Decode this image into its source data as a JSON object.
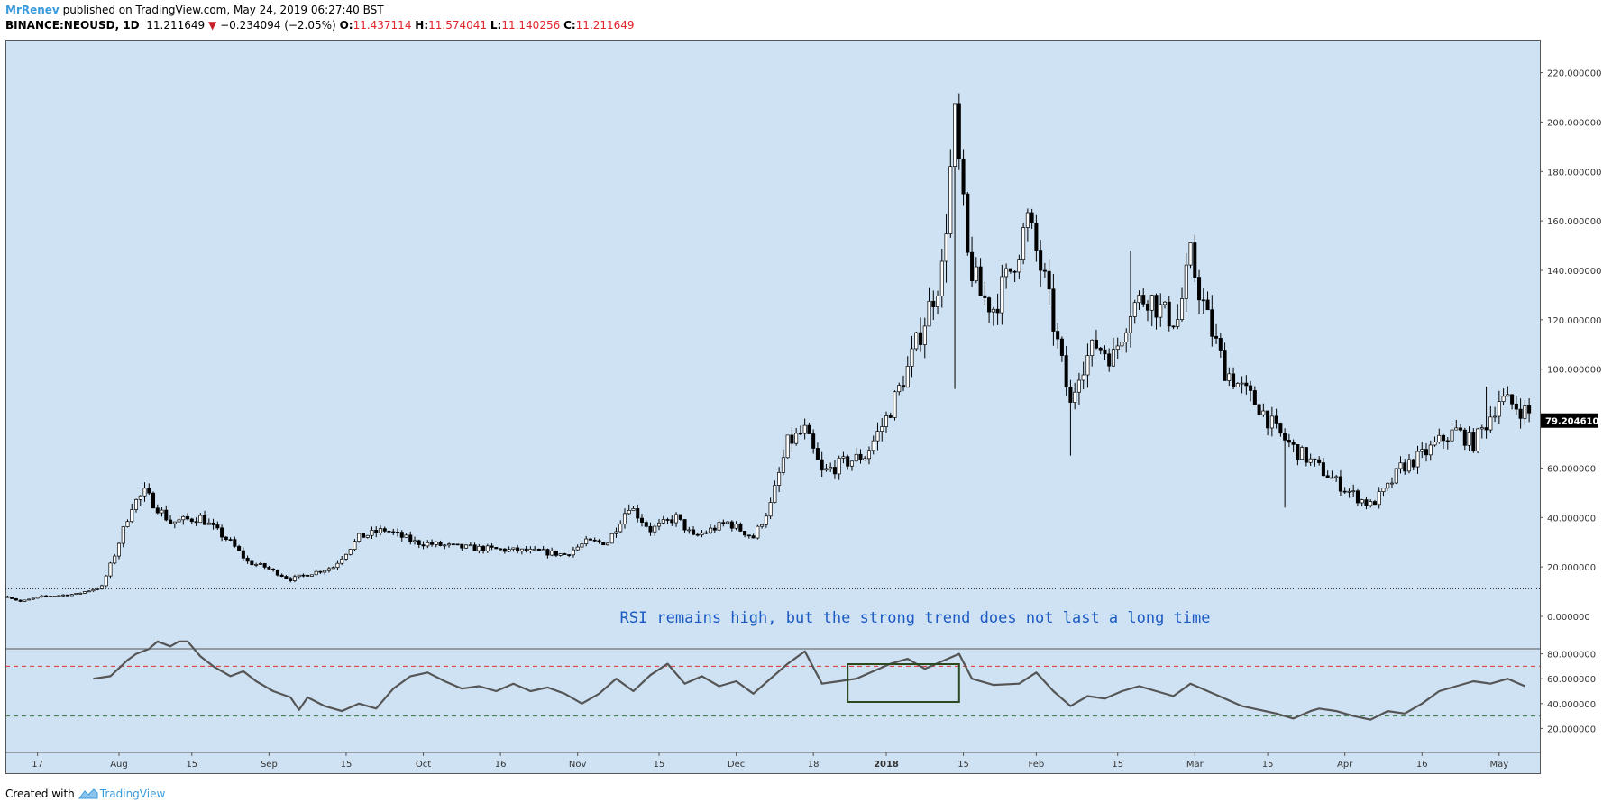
{
  "header": {
    "author": "MrRenev",
    "published_text": "published on TradingView.com, May 24, 2019 06:27:40 BST",
    "symbol": "BINANCE:NEOUSD, 1D",
    "last": "11.211649",
    "change": "−0.234094 (−2.05%)",
    "o_label": "O:",
    "o_value": "11.437114",
    "h_label": "H:",
    "h_value": "11.574041",
    "l_label": "L:",
    "l_value": "11.140256",
    "c_label": "C:",
    "c_value": "11.211649"
  },
  "footer": {
    "created_with": "Created with",
    "brand": "TradingView"
  },
  "colors": {
    "background": "#cfe2f3",
    "candle_up": "#ffffff",
    "candle_down": "#000000",
    "rsi_line": "#555555",
    "overbought_line": "#e03030",
    "oversold_line": "#3a7a3a",
    "annotation_text": "#1c5ac2",
    "highlight_box": "#2b4a1f"
  },
  "chart_data": [
    {
      "type": "candlestick",
      "title": "",
      "ylim": [
        -10,
        230
      ],
      "y_ticks": [
        "220.000000",
        "200.000000",
        "180.000000",
        "160.000000",
        "140.000000",
        "120.000000",
        "100.000000",
        "80.000000",
        "60.000000",
        "40.000000",
        "20.000000",
        "0.000000"
      ],
      "x_ticks": [
        "17",
        "Aug",
        "15",
        "Sep",
        "15",
        "Oct",
        "16",
        "Nov",
        "15",
        "Dec",
        "18",
        "2018",
        "15",
        "Feb",
        "15",
        "Mar",
        "15",
        "Apr",
        "16",
        "May"
      ],
      "last_price_label": "79.204610",
      "current_price_line": 11.21,
      "annotation": "RSI remains high, but the strong trend does not last a long time",
      "close_path": [
        [
          0,
          8
        ],
        [
          3,
          6
        ],
        [
          8,
          8
        ],
        [
          16,
          9
        ],
        [
          22,
          12
        ],
        [
          25,
          25
        ],
        [
          29,
          45
        ],
        [
          32,
          50
        ],
        [
          38,
          38
        ],
        [
          45,
          40
        ],
        [
          52,
          30
        ],
        [
          56,
          22
        ],
        [
          60,
          20
        ],
        [
          66,
          15
        ],
        [
          72,
          18
        ],
        [
          76,
          20
        ],
        [
          82,
          32
        ],
        [
          88,
          35
        ],
        [
          95,
          30
        ],
        [
          105,
          28
        ],
        [
          115,
          27
        ],
        [
          125,
          26
        ],
        [
          130,
          25
        ],
        [
          135,
          30
        ],
        [
          140,
          30
        ],
        [
          145,
          45
        ],
        [
          150,
          35
        ],
        [
          156,
          40
        ],
        [
          160,
          32
        ],
        [
          168,
          38
        ],
        [
          174,
          32
        ],
        [
          178,
          45
        ],
        [
          182,
          70
        ],
        [
          186,
          75
        ],
        [
          190,
          58
        ],
        [
          195,
          62
        ],
        [
          200,
          65
        ],
        [
          205,
          80
        ],
        [
          210,
          100
        ],
        [
          215,
          125
        ],
        [
          218,
          140
        ],
        [
          221,
          200
        ],
        [
          224,
          145
        ],
        [
          227,
          130
        ],
        [
          230,
          125
        ],
        [
          234,
          140
        ],
        [
          238,
          160
        ],
        [
          242,
          135
        ],
        [
          245,
          110
        ],
        [
          248,
          85
        ],
        [
          250,
          100
        ],
        [
          254,
          110
        ],
        [
          258,
          105
        ],
        [
          262,
          125
        ],
        [
          266,
          130
        ],
        [
          270,
          122
        ],
        [
          273,
          120
        ],
        [
          276,
          145
        ],
        [
          280,
          120
        ],
        [
          284,
          100
        ],
        [
          288,
          92
        ],
        [
          292,
          85
        ],
        [
          296,
          75
        ],
        [
          300,
          68
        ],
        [
          306,
          60
        ],
        [
          311,
          53
        ],
        [
          315,
          48
        ],
        [
          318,
          45
        ],
        [
          322,
          52
        ],
        [
          325,
          60
        ],
        [
          330,
          65
        ],
        [
          335,
          72
        ],
        [
          338,
          75
        ],
        [
          342,
          70
        ],
        [
          345,
          78
        ],
        [
          348,
          88
        ],
        [
          352,
          85
        ],
        [
          355,
          82
        ]
      ],
      "highs": [
        {
          "x": 221,
          "y": 206
        },
        {
          "x": 238,
          "y": 165
        },
        {
          "x": 262,
          "y": 148
        },
        {
          "x": 276,
          "y": 150
        },
        {
          "x": 345,
          "y": 93
        }
      ],
      "lows": [
        {
          "x": 221,
          "y": 92
        },
        {
          "x": 248,
          "y": 65
        },
        {
          "x": 298,
          "y": 44
        },
        {
          "x": 318,
          "y": 44
        }
      ]
    },
    {
      "type": "line",
      "title": "",
      "ylim": [
        20,
        100
      ],
      "y_ticks": [
        "80.000000",
        "60.000000",
        "40.000000",
        "20.000000"
      ],
      "overbought": 70,
      "oversold": 30,
      "values": [
        [
          20,
          60
        ],
        [
          24,
          62
        ],
        [
          28,
          75
        ],
        [
          30,
          80
        ],
        [
          33,
          84
        ],
        [
          35,
          90
        ],
        [
          38,
          86
        ],
        [
          40,
          90
        ],
        [
          42,
          90
        ],
        [
          45,
          78
        ],
        [
          48,
          70
        ],
        [
          52,
          62
        ],
        [
          55,
          66
        ],
        [
          58,
          58
        ],
        [
          62,
          50
        ],
        [
          66,
          45
        ],
        [
          68,
          35
        ],
        [
          70,
          45
        ],
        [
          74,
          38
        ],
        [
          78,
          34
        ],
        [
          82,
          40
        ],
        [
          86,
          36
        ],
        [
          90,
          52
        ],
        [
          94,
          62
        ],
        [
          98,
          65
        ],
        [
          102,
          58
        ],
        [
          106,
          52
        ],
        [
          110,
          54
        ],
        [
          114,
          50
        ],
        [
          118,
          56
        ],
        [
          122,
          50
        ],
        [
          126,
          53
        ],
        [
          130,
          48
        ],
        [
          134,
          40
        ],
        [
          138,
          48
        ],
        [
          142,
          60
        ],
        [
          146,
          50
        ],
        [
          150,
          63
        ],
        [
          154,
          72
        ],
        [
          158,
          56
        ],
        [
          162,
          62
        ],
        [
          166,
          54
        ],
        [
          170,
          58
        ],
        [
          174,
          48
        ],
        [
          178,
          60
        ],
        [
          182,
          72
        ],
        [
          186,
          82
        ],
        [
          190,
          56
        ],
        [
          194,
          58
        ],
        [
          198,
          60
        ],
        [
          202,
          66
        ],
        [
          206,
          72
        ],
        [
          210,
          76
        ],
        [
          214,
          68
        ],
        [
          218,
          74
        ],
        [
          222,
          80
        ],
        [
          225,
          60
        ],
        [
          230,
          55
        ],
        [
          236,
          56
        ],
        [
          240,
          65
        ],
        [
          244,
          50
        ],
        [
          248,
          38
        ],
        [
          252,
          46
        ],
        [
          256,
          44
        ],
        [
          260,
          50
        ],
        [
          264,
          54
        ],
        [
          268,
          50
        ],
        [
          272,
          46
        ],
        [
          276,
          56
        ],
        [
          280,
          50
        ],
        [
          284,
          44
        ],
        [
          288,
          38
        ],
        [
          292,
          35
        ],
        [
          296,
          32
        ],
        [
          300,
          28
        ],
        [
          304,
          34
        ],
        [
          306,
          36
        ],
        [
          310,
          34
        ],
        [
          314,
          30
        ],
        [
          318,
          27
        ],
        [
          322,
          34
        ],
        [
          326,
          32
        ],
        [
          330,
          40
        ],
        [
          334,
          50
        ],
        [
          338,
          54
        ],
        [
          342,
          58
        ],
        [
          346,
          56
        ],
        [
          350,
          60
        ],
        [
          354,
          54
        ]
      ],
      "highlight_range": [
        196,
        222
      ]
    }
  ]
}
